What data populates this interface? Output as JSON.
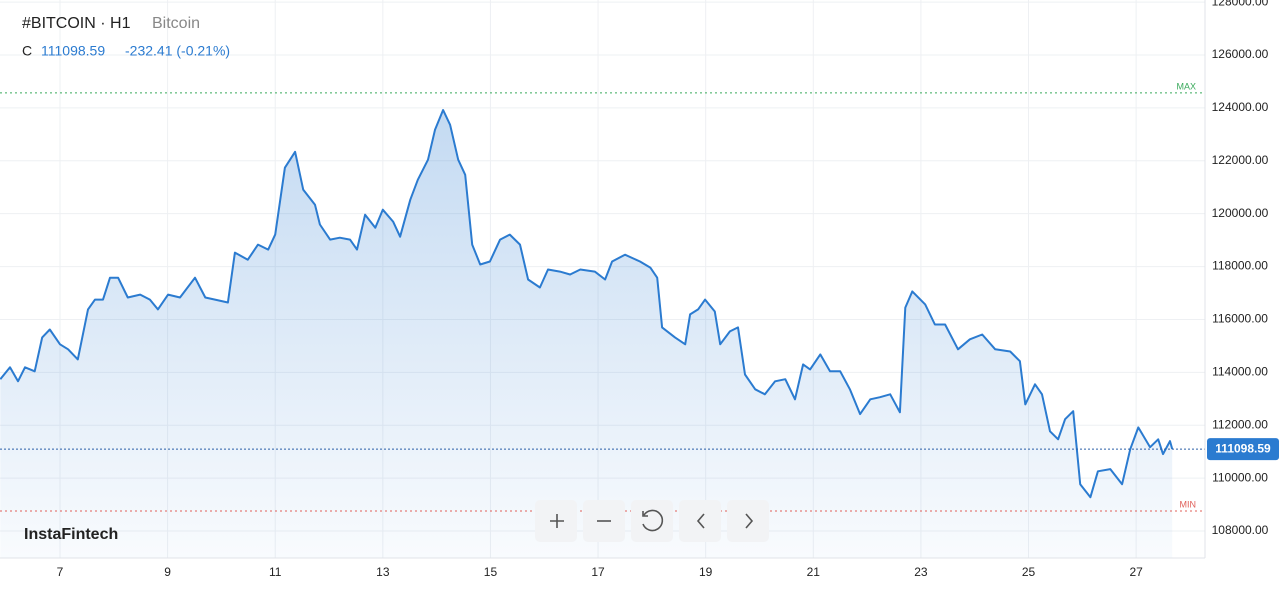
{
  "header": {
    "symbol": "#BITCOIN · H1",
    "name": "Bitcoin",
    "close_label": "C",
    "change": "-232.41 (-0.21%)",
    "brand": "InstaFintech"
  },
  "chart_data": {
    "type": "area",
    "color": "#2b7bd0",
    "x": [
      5.89,
      6.07,
      6.22,
      6.35,
      6.53,
      6.67,
      6.81,
      7.0,
      7.15,
      7.33,
      7.52,
      7.65,
      7.8,
      7.93,
      8.08,
      8.26,
      8.49,
      8.67,
      8.82,
      9.01,
      9.23,
      9.51,
      9.7,
      9.88,
      10.12,
      10.25,
      10.49,
      10.68,
      10.87,
      11.0,
      11.18,
      11.37,
      11.52,
      11.74,
      11.83,
      12.02,
      12.2,
      12.39,
      12.52,
      12.67,
      12.86,
      13.0,
      13.19,
      13.32,
      13.51,
      13.65,
      13.84,
      13.97,
      14.12,
      14.25,
      14.4,
      14.53,
      14.66,
      14.81,
      14.99,
      15.18,
      15.36,
      15.55,
      15.7,
      15.92,
      16.07,
      16.29,
      16.48,
      16.67,
      16.94,
      17.13,
      17.26,
      17.5,
      17.78,
      17.97,
      18.1,
      18.19,
      18.43,
      18.62,
      18.71,
      18.86,
      18.99,
      19.17,
      19.27,
      19.45,
      19.6,
      19.73,
      19.92,
      20.1,
      20.29,
      20.48,
      20.66,
      20.81,
      20.94,
      21.13,
      21.31,
      21.5,
      21.68,
      21.87,
      22.06,
      22.24,
      22.43,
      22.61,
      22.71,
      22.84,
      23.08,
      23.26,
      23.45,
      23.69,
      23.91,
      24.14,
      24.38,
      24.66,
      24.84,
      24.94,
      25.12,
      25.25,
      25.4,
      25.55,
      25.68,
      25.83,
      25.96,
      26.15,
      26.29,
      26.52,
      26.74,
      26.89,
      27.04,
      27.26,
      27.41,
      27.5,
      27.63,
      27.67
    ],
    "values": [
      113740,
      114190,
      113660,
      114190,
      114040,
      115320,
      115620,
      115060,
      114870,
      114490,
      116380,
      116750,
      116750,
      117580,
      117580,
      116830,
      116940,
      116750,
      116380,
      116940,
      116830,
      117580,
      116830,
      116750,
      116640,
      118530,
      118260,
      118830,
      118640,
      119210,
      121740,
      122340,
      120910,
      120340,
      119590,
      119020,
      119090,
      119020,
      118640,
      119960,
      119470,
      120150,
      119700,
      119130,
      120530,
      121280,
      122040,
      123170,
      123920,
      123360,
      122040,
      121470,
      118830,
      118080,
      118190,
      119020,
      119210,
      118830,
      117510,
      117210,
      117890,
      117810,
      117700,
      117890,
      117810,
      117510,
      118190,
      118450,
      118190,
      117960,
      117580,
      115700,
      115320,
      115060,
      116190,
      116380,
      116750,
      116300,
      115060,
      115550,
      115700,
      113920,
      113360,
      113170,
      113660,
      113740,
      112980,
      114300,
      114110,
      114680,
      114040,
      114040,
      113360,
      112420,
      112980,
      113060,
      113170,
      112490,
      116450,
      117060,
      116570,
      115810,
      115810,
      114870,
      115250,
      115430,
      114870,
      114790,
      114420,
      112790,
      113550,
      113170,
      111770,
      111470,
      112230,
      112530,
      109770,
      109280,
      110260,
      110340,
      109770,
      111090,
      111920,
      111170,
      111470,
      110910,
      111400,
      111100
    ],
    "last_price": 111098.59,
    "max_line": {
      "label": "MAX",
      "value": 124566,
      "color": "#3aaa5c"
    },
    "min_line": {
      "label": "MIN",
      "value": 108755,
      "color": "#e0605a"
    },
    "xlim": [
      5.885,
      28.28
    ],
    "xticks": [
      7,
      9,
      11,
      13,
      15,
      17,
      19,
      21,
      23,
      25,
      27
    ],
    "ylim": [
      106980,
      128080
    ],
    "yticks": [
      {
        "value": 108000,
        "label": "108000.00"
      },
      {
        "value": 110000,
        "label": "110000.00"
      },
      {
        "value": 112000,
        "label": "112000.00"
      },
      {
        "value": 114000,
        "label": "114000.00"
      },
      {
        "value": 116000,
        "label": "116000.00"
      },
      {
        "value": 118000,
        "label": "118000.00"
      },
      {
        "value": 120000,
        "label": "120000.00"
      },
      {
        "value": 122000,
        "label": "122000.00"
      },
      {
        "value": 124000,
        "label": "124000.00"
      },
      {
        "value": 126000,
        "label": "126000.00"
      },
      {
        "value": 128000,
        "label": "128000.00"
      }
    ],
    "grid": true
  }
}
